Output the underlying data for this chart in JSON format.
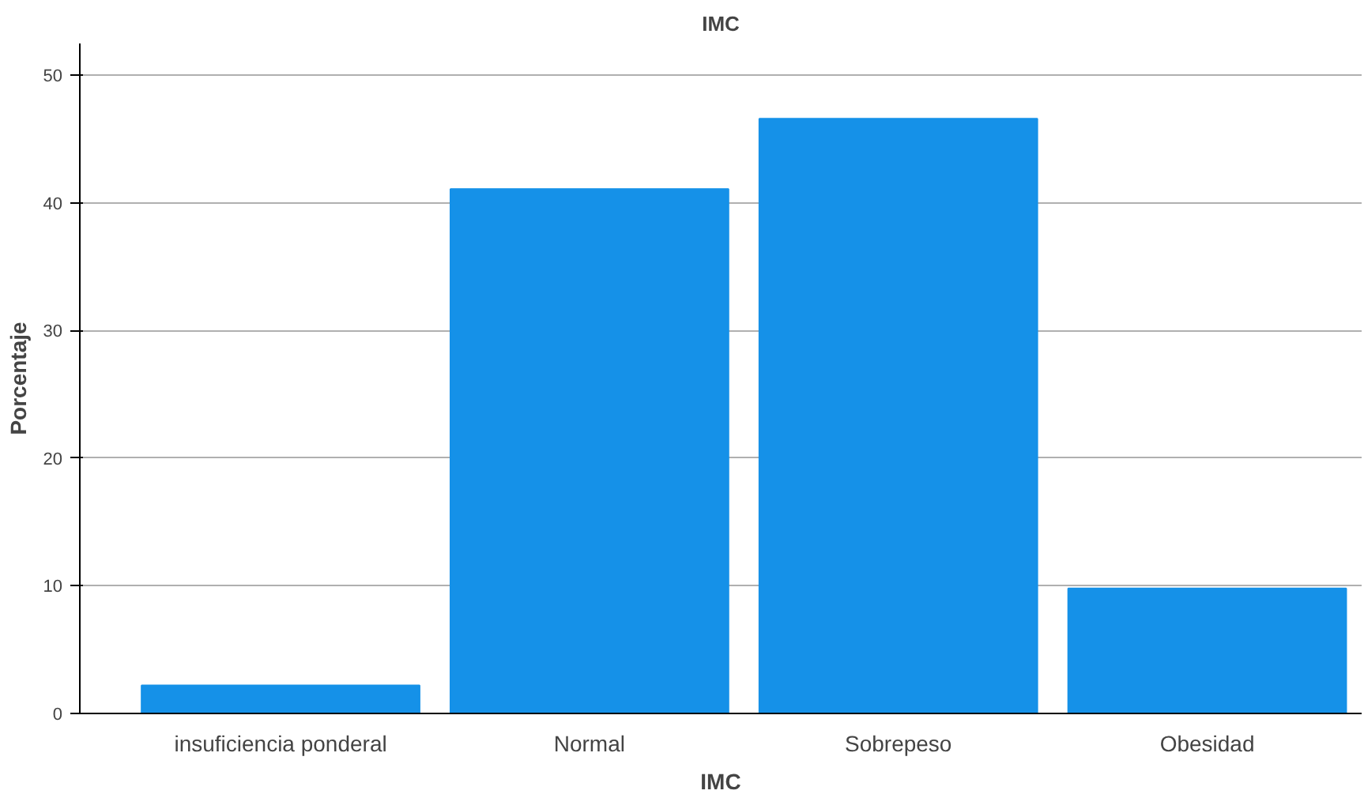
{
  "chart_data": {
    "type": "bar",
    "title": "IMC",
    "xlabel": "IMC",
    "ylabel": "Porcentaje",
    "categories": [
      "insuficiencia ponderal",
      "Normal",
      "Sobrepeso",
      "Obesidad"
    ],
    "values": [
      2.2,
      41.1,
      46.6,
      9.8
    ],
    "color": "#1591e8",
    "ylim": [
      0,
      52.5
    ],
    "yticks": [
      0,
      10,
      20,
      30,
      40,
      50
    ],
    "grid": "y"
  }
}
